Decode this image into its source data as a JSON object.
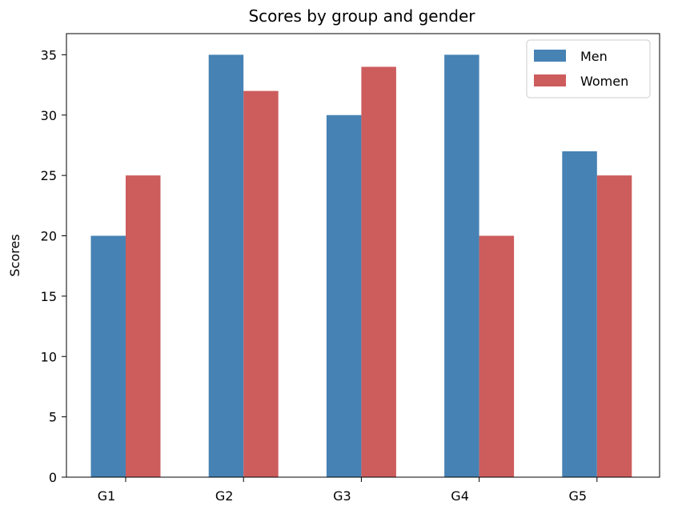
{
  "chart_data": {
    "type": "bar",
    "title": "Scores by group and gender",
    "xlabel": "",
    "ylabel": "Scores",
    "categories": [
      "G1",
      "G2",
      "G3",
      "G4",
      "G5"
    ],
    "series": [
      {
        "name": "Men",
        "values": [
          20,
          35,
          30,
          35,
          27
        ],
        "color": "#4682b4"
      },
      {
        "name": "Women",
        "values": [
          25,
          32,
          34,
          20,
          25
        ],
        "color": "#cd5c5c"
      }
    ],
    "ylim": [
      0,
      36.75
    ],
    "yticks": [
      0,
      5,
      10,
      15,
      20,
      25,
      30,
      35
    ],
    "grid": false,
    "legend": "top-right"
  }
}
